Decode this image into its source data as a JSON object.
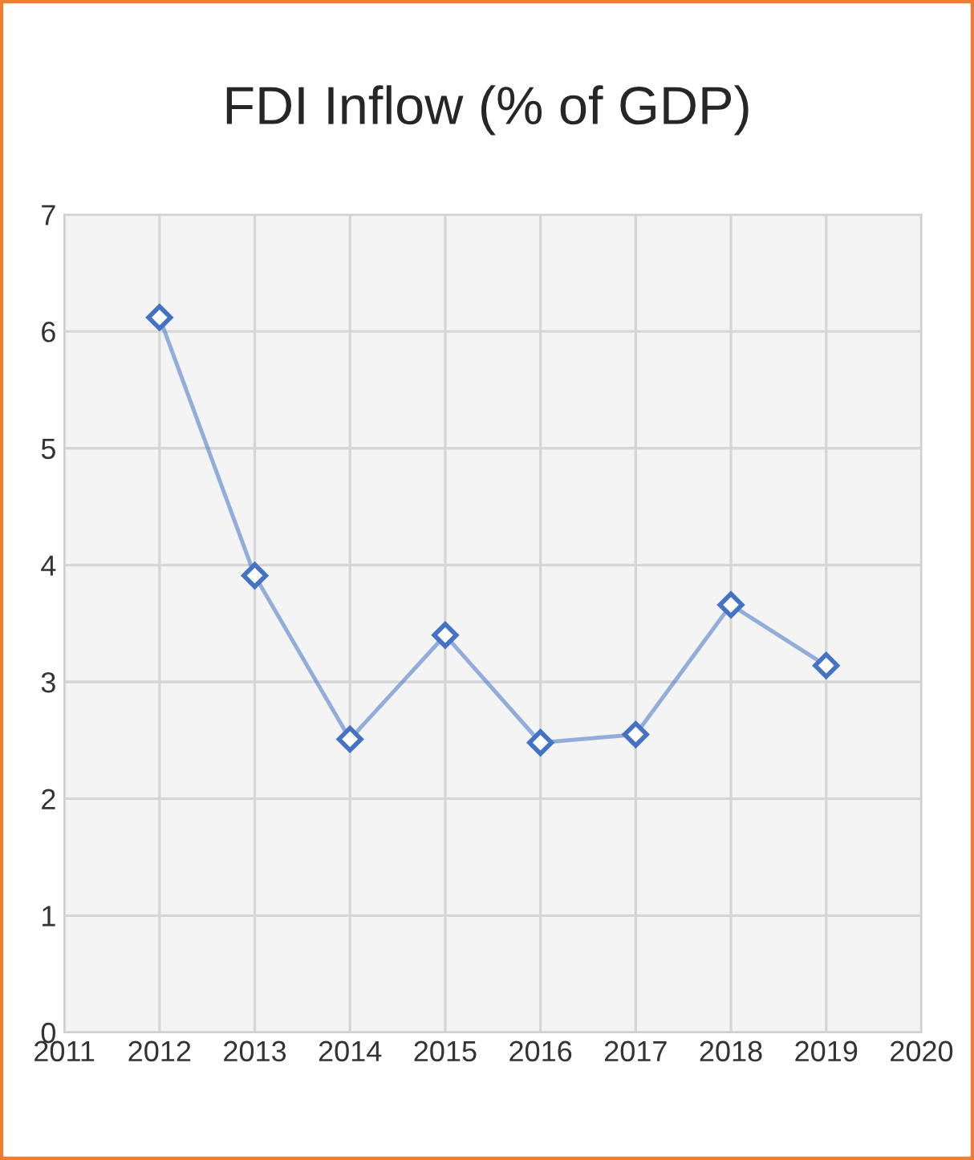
{
  "chart_data": {
    "type": "line",
    "title": "FDI Inflow (% of GDP)",
    "x": [
      2012,
      2013,
      2014,
      2015,
      2016,
      2017,
      2018,
      2019
    ],
    "series": [
      {
        "color": "#4472c4",
        "values": [
          6.12,
          3.91,
          2.51,
          3.4,
          2.48,
          2.55,
          3.66,
          3.14
        ]
      }
    ],
    "xlim": [
      2011,
      2020
    ],
    "xticks": [
      2011,
      2012,
      2013,
      2014,
      2015,
      2016,
      2017,
      2018,
      2019,
      2020
    ],
    "ylim": [
      0,
      7
    ],
    "yticks": [
      0,
      1,
      2,
      3,
      4,
      5,
      6,
      7
    ],
    "grid": true,
    "marker": "diamond",
    "line_style": "solid"
  }
}
